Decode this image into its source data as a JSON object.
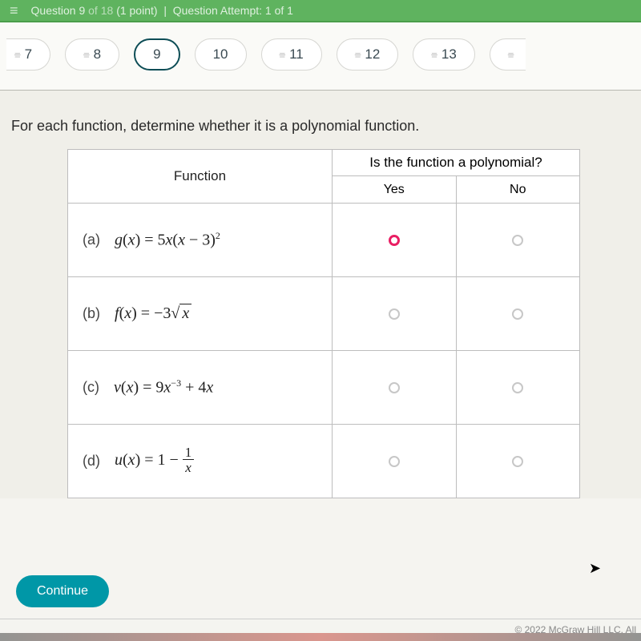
{
  "header": {
    "question_label": "Question",
    "question_num": "9",
    "of_label": "of",
    "total": "18",
    "points": "(1 point)",
    "attempt_label": "Question Attempt: 1 of 1"
  },
  "nav": [
    {
      "label": "7",
      "strike": true
    },
    {
      "label": "8",
      "strike": true
    },
    {
      "label": "9",
      "active": true
    },
    {
      "label": "10"
    },
    {
      "label": "11",
      "strike": true
    },
    {
      "label": "12",
      "strike": true
    },
    {
      "label": "13",
      "strike": true
    },
    {
      "label": "",
      "strike": true
    }
  ],
  "prompt": "For each function, determine whether it is a polynomial function.",
  "table": {
    "fn_header": "Function",
    "poly_header": "Is the function a polynomial?",
    "yes": "Yes",
    "no": "No",
    "rows": [
      {
        "label": "(a)",
        "fn_html": "g(x) = 5x(x − 3)²",
        "selected": "yes"
      },
      {
        "label": "(b)",
        "fn_html": "f(x) = −3√x"
      },
      {
        "label": "(c)",
        "fn_html": "v(x) = 9x⁻³ + 4x"
      },
      {
        "label": "(d)",
        "fn_html": "u(x) = 1 − 1/x"
      }
    ]
  },
  "continue_label": "Continue",
  "copyright": "© 2022 McGraw Hill LLC. All",
  "colors": {
    "green": "#5fb35f",
    "pill_active": "#0d4d56",
    "radio_selected": "#e91e63",
    "teal": "#0097a7",
    "bg": "#f0efe9",
    "border": "#bdbdbd"
  }
}
